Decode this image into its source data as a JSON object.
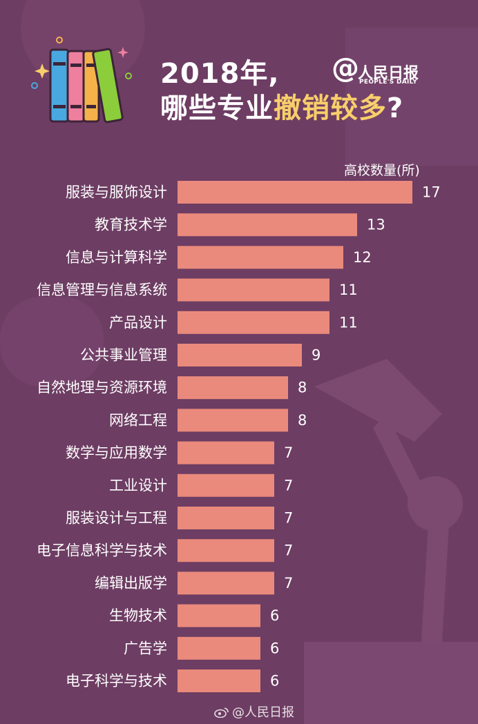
{
  "header": {
    "title_line1": "2018年,",
    "title_line2_plain": "哪些专业",
    "title_line2_highlight": "撤销较多",
    "title_line2_end": "?"
  },
  "brand": {
    "symbol": "@",
    "name_cn": "人民日报",
    "name_en": "PEOPLE'S DAILY"
  },
  "footer": {
    "text": "@人民日报"
  },
  "colors": {
    "background": "#6d3d63",
    "bar": "#ea8a7c",
    "highlight": "#f8cf6b"
  },
  "chart_data": {
    "type": "bar",
    "orientation": "horizontal",
    "unit_label": "高校数量(所)",
    "categories": [
      "服装与服饰设计",
      "教育技术学",
      "信息与计算科学",
      "信息管理与信息系统",
      "产品设计",
      "公共事业管理",
      "自然地理与资源环境",
      "网络工程",
      "数学与应用数学",
      "工业设计",
      "服装设计与工程",
      "电子信息科学与技术",
      "编辑出版学",
      "生物技术",
      "广告学",
      "电子科学与技术"
    ],
    "values": [
      17,
      13,
      12,
      11,
      11,
      9,
      8,
      8,
      7,
      7,
      7,
      7,
      7,
      6,
      6,
      6
    ],
    "xlim": [
      0,
      17
    ],
    "grid": false,
    "legend": "none"
  }
}
